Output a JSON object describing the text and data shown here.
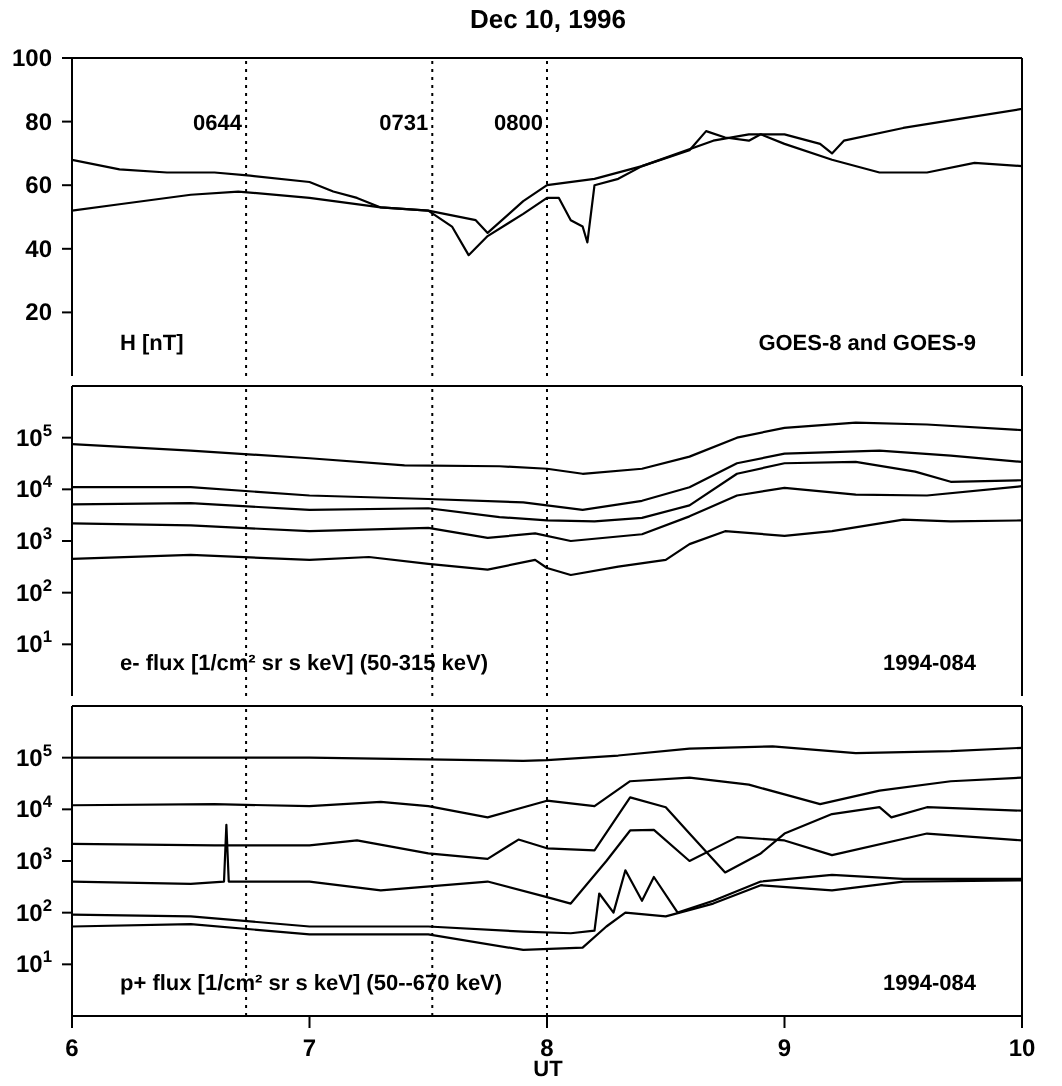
{
  "chart_data": [
    {
      "type": "line",
      "title": "Dec 10, 1996",
      "xlim": [
        6,
        10
      ],
      "xticks": [
        6,
        7,
        8,
        9,
        10
      ],
      "ylim": [
        0,
        100
      ],
      "yticks": [
        20,
        40,
        60,
        80,
        100
      ],
      "tick_labels": "y",
      "marker": "none",
      "annotations": [
        "H [nT]",
        "GOES-8 and GOES-9",
        {
          "text": "0644",
          "x": 6.733,
          "y": 80
        },
        {
          "text": "0731",
          "x": 7.517,
          "y": 80
        },
        {
          "text": "0800",
          "x": 8.0,
          "y": 80
        }
      ],
      "ref_lines": [
        {
          "axis": "x",
          "value": 6.733,
          "line_style": "dotted"
        },
        {
          "axis": "x",
          "value": 7.517,
          "line_style": "dotted"
        },
        {
          "axis": "x",
          "value": 8.0,
          "line_style": "dotted"
        }
      ],
      "series": [
        {
          "color": "#000000",
          "x": [
            6.0,
            6.2,
            6.4,
            6.6,
            6.75,
            7.0,
            7.1,
            7.2,
            7.3,
            7.5,
            7.6,
            7.67,
            7.75,
            7.9,
            8.0,
            8.05,
            8.1,
            8.15,
            8.17,
            8.2,
            8.3,
            8.4,
            8.6,
            8.67,
            8.75,
            8.85,
            8.9,
            9.0,
            9.2,
            9.4,
            9.6,
            9.8,
            10.0
          ],
          "values": [
            68,
            65,
            64,
            64,
            63,
            61,
            58,
            56,
            53,
            52,
            47,
            38,
            44,
            51,
            56,
            56,
            49,
            47,
            42,
            60,
            62,
            66,
            71,
            77,
            75,
            74,
            76,
            73,
            68,
            64,
            64,
            67,
            66
          ]
        },
        {
          "color": "#000000",
          "x": [
            6.0,
            6.2,
            6.5,
            6.7,
            7.0,
            7.3,
            7.5,
            7.7,
            7.75,
            7.9,
            8.0,
            8.2,
            8.4,
            8.7,
            8.85,
            9.0,
            9.15,
            9.2,
            9.25,
            9.5,
            9.75,
            10.0
          ],
          "values": [
            52,
            54,
            57,
            58,
            56,
            53,
            52,
            49,
            45,
            55,
            60,
            62,
            66,
            74,
            76,
            76,
            73,
            70,
            74,
            78,
            81,
            84
          ]
        }
      ]
    },
    {
      "type": "line",
      "xlim": [
        6,
        10
      ],
      "xticks": [
        6,
        7,
        8,
        9,
        10
      ],
      "ylim": [
        1,
        1000000
      ],
      "log": true,
      "tick_labels": "y",
      "marker": "none",
      "annotations": [
        "e- flux [1/cm² sr s keV] (50-315 keV)",
        "1994-084"
      ],
      "yticks": [
        {
          "value": 10,
          "label": "10$^{1}$"
        },
        {
          "value": 100,
          "label": "10$^{2}$"
        },
        {
          "value": 1000,
          "label": "10$^{3}$"
        },
        {
          "value": 10000,
          "label": "10$^{4}$"
        },
        {
          "value": 100000,
          "label": "10$^{5}$"
        }
      ],
      "ref_lines": [
        {
          "axis": "x",
          "value": 6.733,
          "line_style": "dotted"
        },
        {
          "axis": "x",
          "value": 7.517,
          "line_style": "dotted"
        },
        {
          "axis": "x",
          "value": 8.0,
          "line_style": "dotted"
        }
      ],
      "series": [
        {
          "color": "#000000",
          "x": [
            6.0,
            6.5,
            7.0,
            7.4,
            7.8,
            8.0,
            8.15,
            8.4,
            8.6,
            8.8,
            9.0,
            9.3,
            9.6,
            10.0
          ],
          "values": [
            75000,
            56000,
            40000,
            29000,
            28000,
            25000,
            20000,
            25000,
            43000,
            100000,
            155000,
            195000,
            180000,
            140000
          ]
        },
        {
          "color": "#000000",
          "x": [
            6.0,
            6.5,
            7.0,
            7.5,
            7.9,
            8.15,
            8.4,
            8.6,
            8.8,
            9.0,
            9.4,
            9.7,
            10.0
          ],
          "values": [
            11000,
            11000,
            7600,
            6500,
            5600,
            4000,
            6000,
            11000,
            32000,
            49000,
            56000,
            45000,
            34000
          ]
        },
        {
          "color": "#000000",
          "x": [
            6.0,
            6.5,
            7.0,
            7.5,
            7.8,
            8.0,
            8.2,
            8.4,
            8.6,
            8.8,
            9.0,
            9.3,
            9.55,
            9.7,
            10.0
          ],
          "values": [
            5100,
            5400,
            4000,
            4300,
            2900,
            2500,
            2400,
            2800,
            4900,
            20000,
            32000,
            34000,
            22000,
            14000,
            15000
          ]
        },
        {
          "color": "#000000",
          "x": [
            6.0,
            6.5,
            7.0,
            7.5,
            7.75,
            7.95,
            8.1,
            8.4,
            8.6,
            8.8,
            9.0,
            9.3,
            9.6,
            10.0
          ],
          "values": [
            2200,
            2000,
            1550,
            1800,
            1150,
            1400,
            1000,
            1350,
            3000,
            7600,
            10700,
            7900,
            7600,
            11500
          ]
        },
        {
          "color": "#000000",
          "x": [
            6.0,
            6.5,
            7.0,
            7.25,
            7.5,
            7.75,
            7.95,
            8.0,
            8.1,
            8.3,
            8.5,
            8.6,
            8.75,
            9.0,
            9.2,
            9.5,
            9.7,
            10.0
          ],
          "values": [
            450,
            540,
            430,
            490,
            360,
            280,
            430,
            300,
            220,
            320,
            430,
            870,
            1550,
            1260,
            1550,
            2600,
            2400,
            2500
          ]
        }
      ]
    },
    {
      "type": "line",
      "xlabel": "UT",
      "xlim": [
        6,
        10
      ],
      "xticks": [
        6,
        7,
        8,
        9,
        10
      ],
      "ylim": [
        1,
        1000000
      ],
      "log": true,
      "marker": "none",
      "annotations": [
        "p+ flux [1/cm² sr s keV] (50--670 keV)",
        "1994-084"
      ],
      "yticks": [
        {
          "value": 10,
          "label": "10$^{1}$"
        },
        {
          "value": 100,
          "label": "10$^{2}$"
        },
        {
          "value": 1000,
          "label": "10$^{3}$"
        },
        {
          "value": 10000,
          "label": "10$^{4}$"
        },
        {
          "value": 100000,
          "label": "10$^{5}$"
        }
      ],
      "ref_lines": [
        {
          "axis": "x",
          "value": 6.733,
          "line_style": "dotted"
        },
        {
          "axis": "x",
          "value": 7.517,
          "line_style": "dotted"
        },
        {
          "axis": "x",
          "value": 8.0,
          "line_style": "dotted"
        }
      ],
      "series": [
        {
          "color": "#000000",
          "x": [
            6.0,
            7.0,
            7.9,
            8.0,
            8.3,
            8.6,
            8.95,
            9.3,
            9.7,
            10.0
          ],
          "values": [
            100000,
            100000,
            87000,
            90000,
            110000,
            150000,
            165000,
            122000,
            134000,
            155000
          ]
        },
        {
          "color": "#000000",
          "x": [
            6.0,
            6.6,
            7.0,
            7.3,
            7.5,
            7.75,
            8.0,
            8.2,
            8.35,
            8.6,
            8.85,
            9.0,
            9.15,
            9.4,
            9.7,
            10.0
          ],
          "values": [
            12000,
            12600,
            11500,
            14000,
            11500,
            7000,
            14700,
            11500,
            35000,
            41000,
            30000,
            19500,
            12600,
            23000,
            35000,
            41000
          ]
        },
        {
          "color": "#000000",
          "x": [
            6.0,
            6.6,
            7.0,
            7.2,
            7.5,
            7.75,
            7.88,
            8.0,
            8.2,
            8.35,
            8.5,
            8.6,
            8.75,
            8.9,
            9.0,
            9.2,
            9.4,
            9.45,
            9.6,
            10.0
          ],
          "values": [
            2150,
            2000,
            2000,
            2500,
            1400,
            1100,
            2600,
            1760,
            1600,
            17000,
            11000,
            3400,
            600,
            1400,
            3400,
            8100,
            11000,
            7000,
            11000,
            9400
          ]
        },
        {
          "color": "#000000",
          "x": [
            6.0,
            6.5,
            6.64,
            6.65,
            6.66,
            7.0,
            7.3,
            7.75,
            8.0,
            8.1,
            8.25,
            8.35,
            8.45,
            8.6,
            8.8,
            9.0,
            9.2,
            9.6,
            10.0
          ],
          "values": [
            400,
            360,
            400,
            5000,
            400,
            400,
            270,
            400,
            200,
            150,
            1000,
            3900,
            4000,
            1000,
            2900,
            2500,
            1300,
            3400,
            2500
          ]
        },
        {
          "color": "#000000",
          "x": [
            6.0,
            6.5,
            7.0,
            7.5,
            7.9,
            8.1,
            8.2,
            8.22,
            8.28,
            8.33,
            8.4,
            8.45,
            8.55,
            8.7,
            8.9,
            9.2,
            9.5,
            10.0
          ],
          "values": [
            92,
            85,
            54,
            54,
            43,
            40,
            45,
            235,
            100,
            660,
            170,
            490,
            100,
            170,
            400,
            540,
            450,
            450
          ]
        },
        {
          "color": "#000000",
          "x": [
            6.0,
            6.5,
            7.0,
            7.5,
            7.9,
            8.15,
            8.25,
            8.33,
            8.5,
            8.7,
            8.9,
            9.2,
            9.5,
            10.0
          ],
          "values": [
            54,
            60,
            38,
            38,
            19,
            21,
            54,
            100,
            85,
            150,
            340,
            270,
            400,
            420
          ]
        }
      ]
    }
  ]
}
